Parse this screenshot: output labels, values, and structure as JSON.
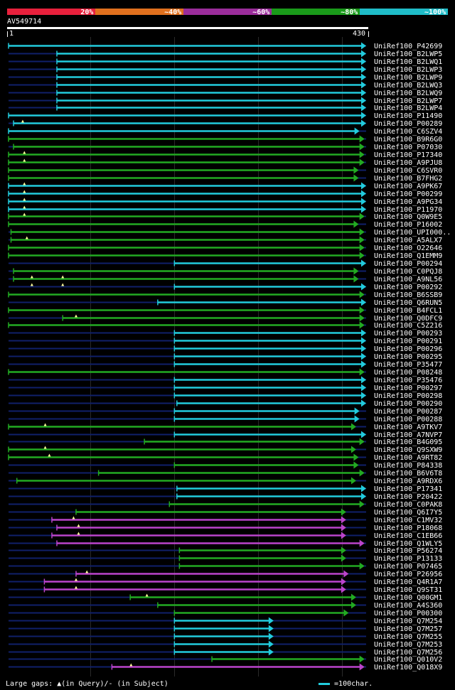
{
  "header": {
    "legend": [
      {
        "label": "20%",
        "color": "#e8203c"
      },
      {
        "label": "~40%",
        "color": "#e0701e"
      },
      {
        "label": "~60%",
        "color": "#9b2d9b"
      },
      {
        "label": "~80%",
        "color": "#1a9a1a"
      },
      {
        "label": "~100%",
        "color": "#1fbcc8"
      }
    ],
    "query_id": "AV549714",
    "scale_start": "1",
    "scale_end": "430"
  },
  "colors": {
    "cyan": "#22ccdd",
    "green": "#22aa22",
    "purple": "#bb44cc",
    "backbone": "#10206a",
    "triangle": "#ffff99"
  },
  "hits": [
    {
      "name": "UniRef100_P42699",
      "color": "cyan",
      "start": 1,
      "end": 430,
      "gaps": []
    },
    {
      "name": "UniRef100_B2LWP5",
      "color": "cyan",
      "start": 59,
      "end": 430,
      "gaps": []
    },
    {
      "name": "UniRef100_B2LWQ1",
      "color": "cyan",
      "start": 59,
      "end": 430,
      "gaps": []
    },
    {
      "name": "UniRef100_B2LWP3",
      "color": "cyan",
      "start": 59,
      "end": 430,
      "gaps": []
    },
    {
      "name": "UniRef100_B2LWP9",
      "color": "cyan",
      "start": 59,
      "end": 430,
      "gaps": []
    },
    {
      "name": "UniRef100_B2LWQ3",
      "color": "cyan",
      "start": 59,
      "end": 430,
      "gaps": []
    },
    {
      "name": "UniRef100_B2LWQ9",
      "color": "cyan",
      "start": 59,
      "end": 430,
      "gaps": []
    },
    {
      "name": "UniRef100_B2LWP7",
      "color": "cyan",
      "start": 59,
      "end": 430,
      "gaps": []
    },
    {
      "name": "UniRef100_B2LWP4",
      "color": "cyan",
      "start": 59,
      "end": 430,
      "gaps": []
    },
    {
      "name": "UniRef100_P11490",
      "color": "cyan",
      "start": 1,
      "end": 430,
      "gaps": []
    },
    {
      "name": "UniRef100_P00289",
      "color": "cyan",
      "start": 7,
      "end": 430,
      "gaps": [
        18
      ]
    },
    {
      "name": "UniRef100_C6SZV4",
      "color": "cyan",
      "start": 1,
      "end": 422,
      "gaps": []
    },
    {
      "name": "UniRef100_B9R6G0",
      "color": "green",
      "start": 1,
      "end": 428,
      "gaps": []
    },
    {
      "name": "UniRef100_P07030",
      "color": "green",
      "start": 7,
      "end": 428,
      "gaps": []
    },
    {
      "name": "UniRef100_P17340",
      "color": "green",
      "start": 1,
      "end": 428,
      "gaps": [
        20
      ]
    },
    {
      "name": "UniRef100_A9PJU8",
      "color": "green",
      "start": 1,
      "end": 428,
      "gaps": [
        20
      ]
    },
    {
      "name": "UniRef100_C6SVR0",
      "color": "green",
      "start": 1,
      "end": 421,
      "gaps": []
    },
    {
      "name": "UniRef100_B7FHG2",
      "color": "green",
      "start": 1,
      "end": 421,
      "gaps": []
    },
    {
      "name": "UniRef100_A9PK67",
      "color": "cyan",
      "start": 1,
      "end": 430,
      "gaps": [
        20
      ]
    },
    {
      "name": "UniRef100_P00299",
      "color": "cyan",
      "start": 1,
      "end": 430,
      "gaps": [
        20
      ]
    },
    {
      "name": "UniRef100_A9PG34",
      "color": "cyan",
      "start": 1,
      "end": 430,
      "gaps": [
        20
      ]
    },
    {
      "name": "UniRef100_P11970",
      "color": "cyan",
      "start": 1,
      "end": 430,
      "gaps": [
        20
      ]
    },
    {
      "name": "UniRef100_Q0W9E5",
      "color": "green",
      "start": 1,
      "end": 428,
      "gaps": [
        20
      ]
    },
    {
      "name": "UniRef100_P16002",
      "color": "green",
      "start": 1,
      "end": 421,
      "gaps": []
    },
    {
      "name": "UniRef100_UPI000..",
      "color": "green",
      "start": 4,
      "end": 428,
      "gaps": []
    },
    {
      "name": "UniRef100_A5ALX7",
      "color": "green",
      "start": 4,
      "end": 428,
      "gaps": [
        23
      ]
    },
    {
      "name": "UniRef100_O22646",
      "color": "green",
      "start": 1,
      "end": 428,
      "gaps": []
    },
    {
      "name": "UniRef100_Q1EMM9",
      "color": "green",
      "start": 1,
      "end": 428,
      "gaps": []
    },
    {
      "name": "UniRef100_P00294",
      "color": "cyan",
      "start": 200,
      "end": 430,
      "gaps": []
    },
    {
      "name": "UniRef100_C0PQJ8",
      "color": "green",
      "start": 7,
      "end": 421,
      "gaps": []
    },
    {
      "name": "UniRef100_A9NL56",
      "color": "green",
      "start": 7,
      "end": 421,
      "gaps": [
        29,
        66
      ]
    },
    {
      "name": "UniRef100_P00292",
      "color": "cyan",
      "start": 200,
      "end": 430,
      "gaps": [
        29,
        66
      ]
    },
    {
      "name": "UniRef100_B6SSB9",
      "color": "green",
      "start": 1,
      "end": 428,
      "gaps": []
    },
    {
      "name": "UniRef100_Q6RUN5",
      "color": "cyan",
      "start": 180,
      "end": 430,
      "gaps": []
    },
    {
      "name": "UniRef100_B4FCL1",
      "color": "green",
      "start": 1,
      "end": 428,
      "gaps": []
    },
    {
      "name": "UniRef100_Q0DFC9",
      "color": "green",
      "start": 66,
      "end": 428,
      "gaps": [
        82
      ]
    },
    {
      "name": "UniRef100_C5Z216",
      "color": "green",
      "start": 1,
      "end": 428,
      "gaps": []
    },
    {
      "name": "UniRef100_P00293",
      "color": "cyan",
      "start": 200,
      "end": 430,
      "gaps": []
    },
    {
      "name": "UniRef100_P00291",
      "color": "cyan",
      "start": 200,
      "end": 430,
      "gaps": []
    },
    {
      "name": "UniRef100_P00296",
      "color": "cyan",
      "start": 200,
      "end": 430,
      "gaps": []
    },
    {
      "name": "UniRef100_P00295",
      "color": "cyan",
      "start": 200,
      "end": 430,
      "gaps": []
    },
    {
      "name": "UniRef100_P35477",
      "color": "cyan",
      "start": 200,
      "end": 430,
      "gaps": []
    },
    {
      "name": "UniRef100_P08248",
      "color": "green",
      "start": 1,
      "end": 428,
      "gaps": []
    },
    {
      "name": "UniRef100_P35476",
      "color": "cyan",
      "start": 200,
      "end": 430,
      "gaps": []
    },
    {
      "name": "UniRef100_P00297",
      "color": "cyan",
      "start": 200,
      "end": 430,
      "gaps": []
    },
    {
      "name": "UniRef100_P00298",
      "color": "cyan",
      "start": 200,
      "end": 430,
      "gaps": []
    },
    {
      "name": "UniRef100_P00290",
      "color": "cyan",
      "start": 203,
      "end": 430,
      "gaps": []
    },
    {
      "name": "UniRef100_P00287",
      "color": "cyan",
      "start": 200,
      "end": 422,
      "gaps": []
    },
    {
      "name": "UniRef100_P00288",
      "color": "cyan",
      "start": 200,
      "end": 422,
      "gaps": []
    },
    {
      "name": "UniRef100_A9TKV7",
      "color": "green",
      "start": 1,
      "end": 418,
      "gaps": [
        45
      ]
    },
    {
      "name": "UniRef100_A7NVP7",
      "color": "cyan",
      "start": 200,
      "end": 430,
      "gaps": []
    },
    {
      "name": "UniRef100_B4G095",
      "color": "green",
      "start": 164,
      "end": 428,
      "gaps": []
    },
    {
      "name": "UniRef100_Q9SXW9",
      "color": "green",
      "start": 1,
      "end": 418,
      "gaps": [
        45
      ]
    },
    {
      "name": "UniRef100_A9RT82",
      "color": "green",
      "start": 1,
      "end": 421,
      "gaps": [
        50
      ]
    },
    {
      "name": "UniRef100_P84338",
      "color": "green",
      "start": 200,
      "end": 421,
      "gaps": []
    },
    {
      "name": "UniRef100_B6V6T8",
      "color": "green",
      "start": 109,
      "end": 428,
      "gaps": []
    },
    {
      "name": "UniRef100_A9RDX6",
      "color": "green",
      "start": 11,
      "end": 418,
      "gaps": []
    },
    {
      "name": "UniRef100_P17341",
      "color": "cyan",
      "start": 203,
      "end": 430,
      "gaps": []
    },
    {
      "name": "UniRef100_P20422",
      "color": "cyan",
      "start": 203,
      "end": 430,
      "gaps": []
    },
    {
      "name": "UniRef100_C0PAK8",
      "color": "green",
      "start": 194,
      "end": 428,
      "gaps": []
    },
    {
      "name": "UniRef100_Q6I7Y5",
      "color": "green",
      "start": 82,
      "end": 406,
      "gaps": []
    },
    {
      "name": "UniRef100_C1MV32",
      "color": "purple",
      "start": 53,
      "end": 406,
      "gaps": [
        79
      ]
    },
    {
      "name": "UniRef100_P18068",
      "color": "purple",
      "start": 59,
      "end": 406,
      "gaps": [
        85
      ]
    },
    {
      "name": "UniRef100_C1EB66",
      "color": "purple",
      "start": 53,
      "end": 406,
      "gaps": [
        85
      ]
    },
    {
      "name": "UniRef100_Q1WLY5",
      "color": "purple",
      "start": 59,
      "end": 428,
      "gaps": []
    },
    {
      "name": "UniRef100_P56274",
      "color": "green",
      "start": 206,
      "end": 406,
      "gaps": []
    },
    {
      "name": "UniRef100_P13133",
      "color": "green",
      "start": 206,
      "end": 406,
      "gaps": []
    },
    {
      "name": "UniRef100_P07465",
      "color": "green",
      "start": 206,
      "end": 428,
      "gaps": []
    },
    {
      "name": "UniRef100_P26956",
      "color": "purple",
      "start": 82,
      "end": 409,
      "gaps": [
        95
      ]
    },
    {
      "name": "UniRef100_Q4R1A7",
      "color": "purple",
      "start": 44,
      "end": 406,
      "gaps": [
        82
      ]
    },
    {
      "name": "UniRef100_Q9ST31",
      "color": "purple",
      "start": 44,
      "end": 406,
      "gaps": [
        82
      ]
    },
    {
      "name": "UniRef100_Q00GM1",
      "color": "green",
      "start": 147,
      "end": 418,
      "gaps": [
        167
      ]
    },
    {
      "name": "UniRef100_A4S360",
      "color": "green",
      "start": 180,
      "end": 418,
      "gaps": []
    },
    {
      "name": "UniRef100_P00300",
      "color": "green",
      "start": 200,
      "end": 409,
      "gaps": []
    },
    {
      "name": "UniRef100_Q7M254",
      "color": "cyan",
      "start": 200,
      "end": 319,
      "gaps": []
    },
    {
      "name": "UniRef100_Q7M257",
      "color": "cyan",
      "start": 200,
      "end": 319,
      "gaps": []
    },
    {
      "name": "UniRef100_Q7M255",
      "color": "cyan",
      "start": 200,
      "end": 319,
      "gaps": []
    },
    {
      "name": "UniRef100_Q7M253",
      "color": "cyan",
      "start": 200,
      "end": 319,
      "gaps": []
    },
    {
      "name": "UniRef100_Q7M256",
      "color": "cyan",
      "start": 200,
      "end": 319,
      "gaps": []
    },
    {
      "name": "UniRef100_Q010V2",
      "color": "green",
      "start": 245,
      "end": 428,
      "gaps": []
    },
    {
      "name": "UniRef100_Q018X9",
      "color": "purple",
      "start": 125,
      "end": 428,
      "gaps": [
        148
      ]
    }
  ],
  "footer": {
    "gaps_text": "Large gaps: ▲(in Query)/- (in Subject)",
    "scale_text": "=100char."
  }
}
